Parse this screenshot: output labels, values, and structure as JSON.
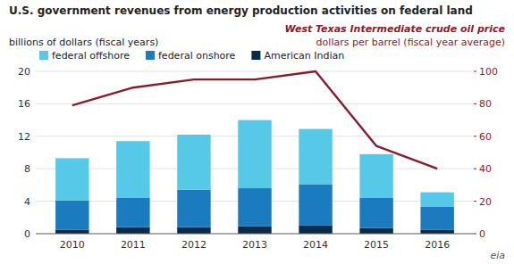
{
  "chart_data": {
    "type": "bar",
    "stacked": true,
    "title": "U.S. government revenues from energy production activities on federal land",
    "y_label": "billions of dollars (fiscal years)",
    "y2_label": "dollars per barrel (fiscal year average)",
    "annotations": [
      "eia"
    ],
    "categories": [
      "2010",
      "2011",
      "2012",
      "2013",
      "2014",
      "2015",
      "2016"
    ],
    "series": [
      {
        "name": "American Indian",
        "color": "#0a2a4a",
        "values": [
          0.5,
          0.8,
          0.8,
          0.9,
          1.0,
          0.7,
          0.5
        ]
      },
      {
        "name": "federal onshore",
        "color": "#1a7bbf",
        "values": [
          3.6,
          3.6,
          4.6,
          4.7,
          5.1,
          3.7,
          2.8
        ]
      },
      {
        "name": "federal offshore",
        "color": "#56c8e8",
        "values": [
          5.2,
          7.0,
          6.8,
          8.4,
          6.8,
          5.4,
          1.8
        ]
      },
      {
        "name": "West Texas Intermediate crude oil price",
        "type": "line",
        "axis": "y2",
        "color": "#8b1a2a",
        "values": [
          79,
          90,
          95,
          95,
          100,
          54,
          40
        ]
      }
    ],
    "ylim": [
      0,
      20
    ],
    "yticks": [
      0,
      4,
      8,
      12,
      16,
      20
    ],
    "y2lim": [
      0,
      100
    ],
    "y2ticks": [
      0,
      20,
      40,
      60,
      80,
      100
    ],
    "grid": true,
    "legend": "top"
  }
}
